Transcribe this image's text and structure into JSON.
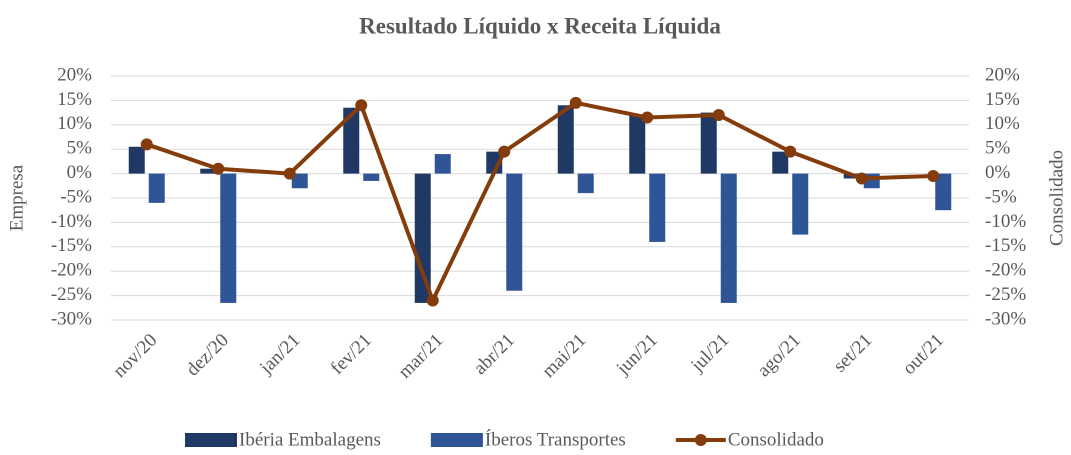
{
  "chart_data": {
    "type": "bar",
    "title": "Resultado Líquido x Receita Líquida",
    "y_label": "Empresa",
    "y2_label": "Consolidado",
    "categories": [
      "nov/20",
      "dez/20",
      "jan/21",
      "fev/21",
      "mar/21",
      "abr/21",
      "mai/21",
      "jun/21",
      "jul/21",
      "ago/21",
      "set/21",
      "out/21"
    ],
    "series": [
      {
        "name": "Ibéria Embalagens",
        "type": "bar",
        "color": "#1f3864",
        "values": [
          5.5,
          1,
          0,
          13.5,
          -26.5,
          4.5,
          14,
          12,
          12.5,
          4.5,
          -1,
          0
        ]
      },
      {
        "name": "Íberos Transportes",
        "type": "bar",
        "color": "#2f5597",
        "values": [
          -6,
          -26.5,
          -3,
          -1.5,
          4,
          -24,
          -4,
          -14,
          -26.5,
          -12.5,
          -3,
          -7.5
        ]
      },
      {
        "name": "Consolidado",
        "type": "line",
        "axis": "y2",
        "color": "#843c0c",
        "values": [
          6,
          1,
          0,
          14,
          -26,
          4.5,
          14.5,
          11.5,
          12,
          4.5,
          -1,
          -0.5
        ]
      }
    ],
    "ylim": [
      -30,
      20
    ],
    "yticks": [
      {
        "value": -30,
        "label": "-30%"
      },
      {
        "value": -25,
        "label": "-25%"
      },
      {
        "value": -20,
        "label": "-20%"
      },
      {
        "value": -15,
        "label": "-15%"
      },
      {
        "value": -10,
        "label": "-10%"
      },
      {
        "value": -5,
        "label": "-5%"
      },
      {
        "value": 0,
        "label": "0%"
      },
      {
        "value": 5,
        "label": "5%"
      },
      {
        "value": 10,
        "label": "10%"
      },
      {
        "value": 15,
        "label": "15%"
      },
      {
        "value": 20,
        "label": "20%"
      }
    ],
    "y2lim": [
      -30,
      20
    ],
    "y2ticks": [
      {
        "value": -30,
        "label": "-30%"
      },
      {
        "value": -25,
        "label": "-25%"
      },
      {
        "value": -20,
        "label": "-20%"
      },
      {
        "value": -15,
        "label": "-15%"
      },
      {
        "value": -10,
        "label": "-10%"
      },
      {
        "value": -5,
        "label": "-5%"
      },
      {
        "value": 0,
        "label": "0%"
      },
      {
        "value": 5,
        "label": "5%"
      },
      {
        "value": 10,
        "label": "10%"
      },
      {
        "value": 15,
        "label": "15%"
      },
      {
        "value": 20,
        "label": "20%"
      }
    ],
    "grid": true,
    "legend": "bottom"
  }
}
